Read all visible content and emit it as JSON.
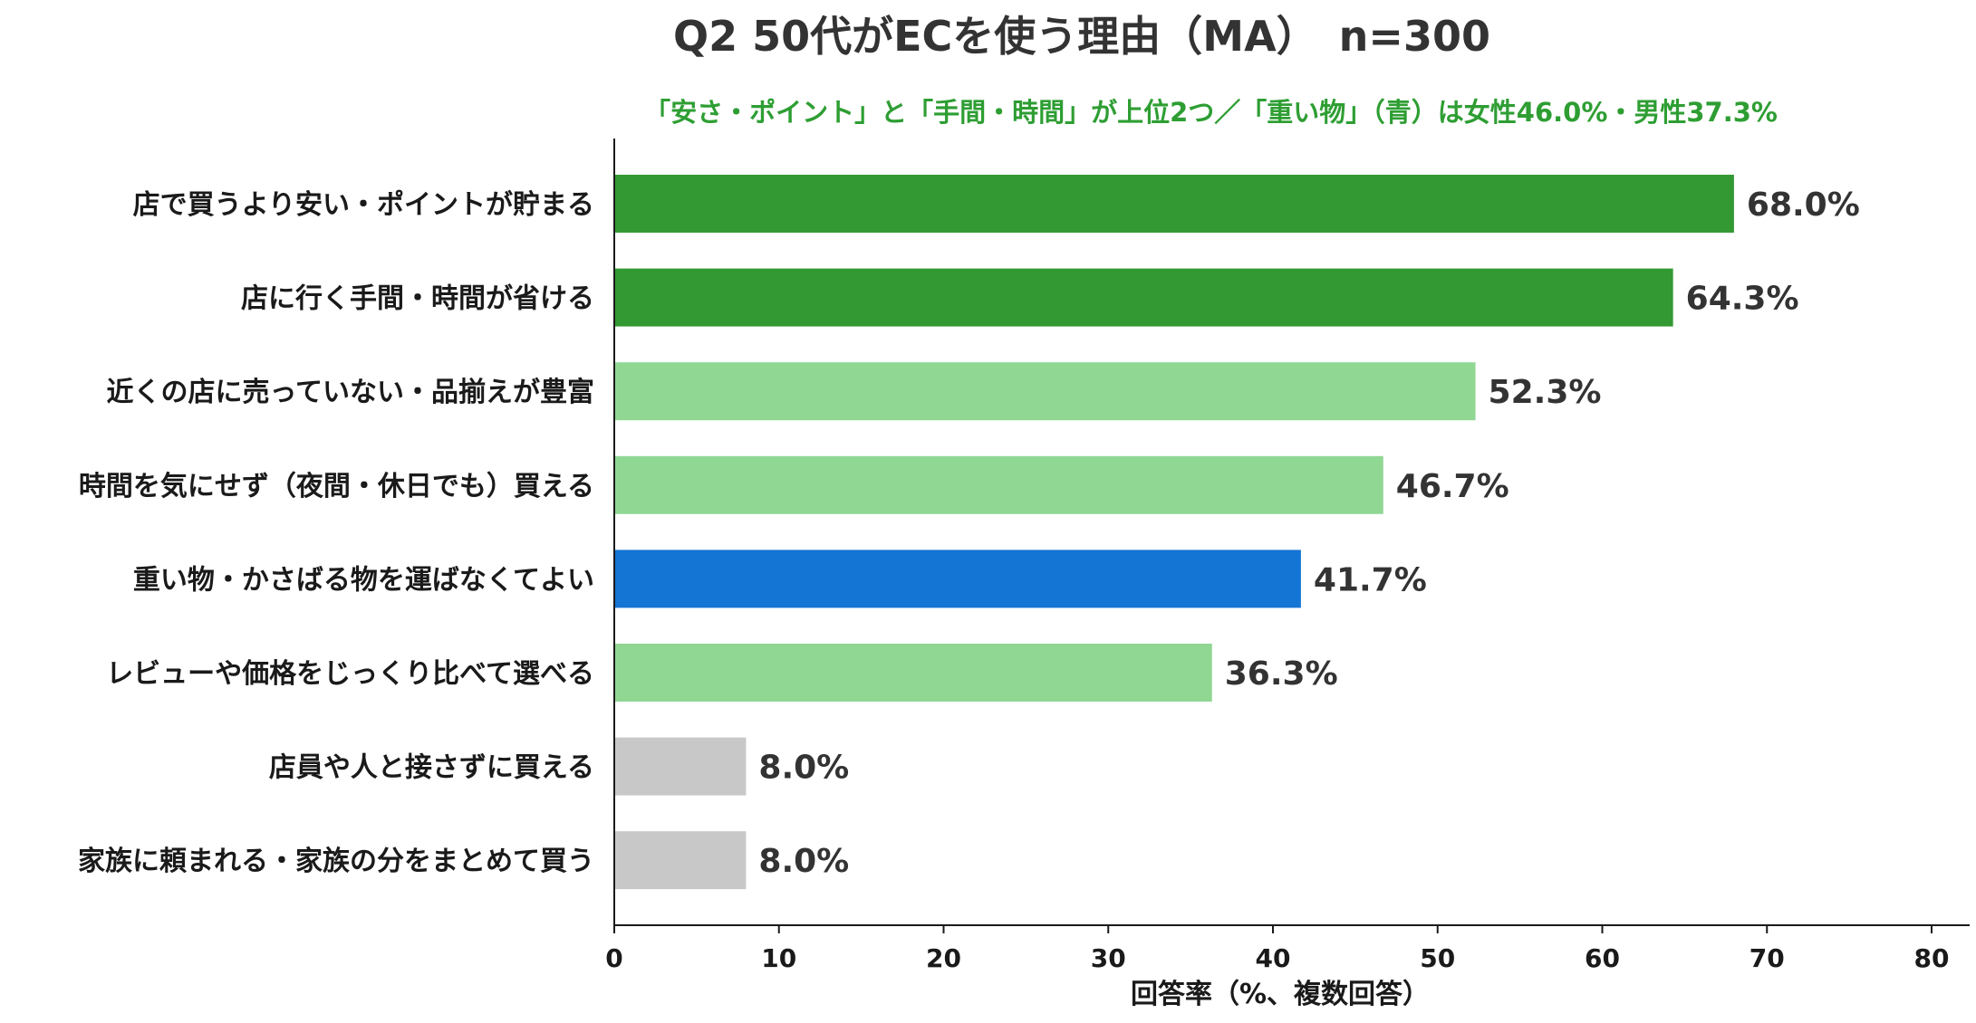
{
  "chart_data": {
    "type": "bar",
    "orientation": "horizontal",
    "title": "Q2 50代がECを使う理由（MA）　n=300",
    "subtitle": "「安さ・ポイント」と「手間・時間」が上位2つ／「重い物」（青）は女性46.0%・男性37.3%",
    "xlabel": "回答率（%、複数回答）",
    "ylabel": "",
    "xlim": [
      0,
      80
    ],
    "xticks": [
      0,
      10,
      20,
      30,
      40,
      50,
      60,
      70,
      80
    ],
    "grid": false,
    "legend": "none",
    "categories": [
      "店で買うより安い・ポイントが貯まる",
      "店に行く手間・時間が省ける",
      "近くの店に売っていない・品揃えが豊富",
      "時間を気にせず（夜間・休日でも）買える",
      "重い物・かさばる物を運ばなくてよい",
      "レビューや価格をじっくり比べて選べる",
      "店員や人と接さずに買える",
      "家族に頼まれる・家族の分をまとめて買う"
    ],
    "values": [
      68.0,
      64.3,
      52.3,
      46.7,
      41.7,
      36.3,
      8.0,
      8.0
    ],
    "value_labels": [
      "68.0%",
      "64.3%",
      "52.3%",
      "46.7%",
      "41.7%",
      "36.3%",
      "8.0%",
      "8.0%"
    ],
    "bar_colors": [
      "#339933",
      "#339933",
      "#90d794",
      "#90d794",
      "#1475d4",
      "#90d794",
      "#c8c8c8",
      "#c8c8c8"
    ]
  },
  "colors": {
    "subtitle": "#2e9e33",
    "title": "#333333",
    "axis": "#1a1a1a"
  }
}
